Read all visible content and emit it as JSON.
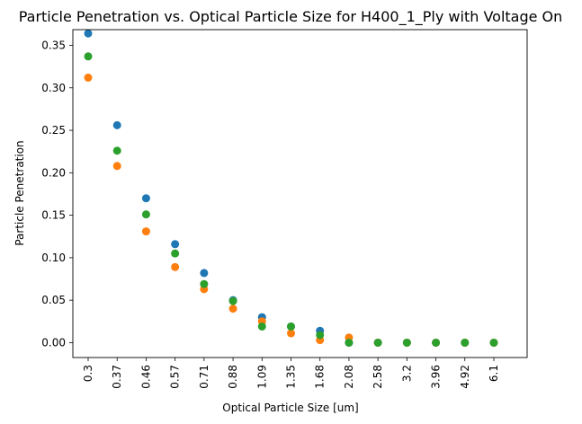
{
  "chart_data": {
    "type": "scatter",
    "title": "Particle Penetration vs. Optical Particle Size for H400_1_Ply with Voltage On",
    "xlabel": "Optical Particle Size [um]",
    "ylabel": "Particle Penetration",
    "categories": [
      "0.3",
      "0.37",
      "0.46",
      "0.57",
      "0.71",
      "0.88",
      "1.09",
      "1.35",
      "1.68",
      "2.08",
      "2.58",
      "3.2",
      "3.96",
      "4.92",
      "6.1"
    ],
    "yticks": [
      "0.00",
      "0.05",
      "0.10",
      "0.15",
      "0.20",
      "0.25",
      "0.30",
      "0.35"
    ],
    "ylim": [
      -0.0175,
      0.3685
    ],
    "grid": false,
    "legend": "none",
    "series": [
      {
        "color": "#1f77b4",
        "values": [
          0.364,
          0.256,
          0.17,
          0.116,
          0.082,
          0.05,
          0.03,
          0.019,
          0.014,
          0.0,
          0.0,
          0.0,
          0.0,
          0.0,
          0.0
        ]
      },
      {
        "color": "#ff7f0e",
        "values": [
          0.312,
          0.208,
          0.131,
          0.089,
          0.063,
          0.04,
          0.025,
          0.011,
          0.003,
          0.006,
          0.0,
          0.0,
          0.0,
          0.0,
          0.0
        ]
      },
      {
        "color": "#2ca02c",
        "values": [
          0.337,
          0.226,
          0.151,
          0.105,
          0.069,
          0.049,
          0.019,
          0.019,
          0.009,
          0.0,
          0.0,
          0.0,
          0.0,
          0.0,
          0.0
        ]
      }
    ]
  }
}
